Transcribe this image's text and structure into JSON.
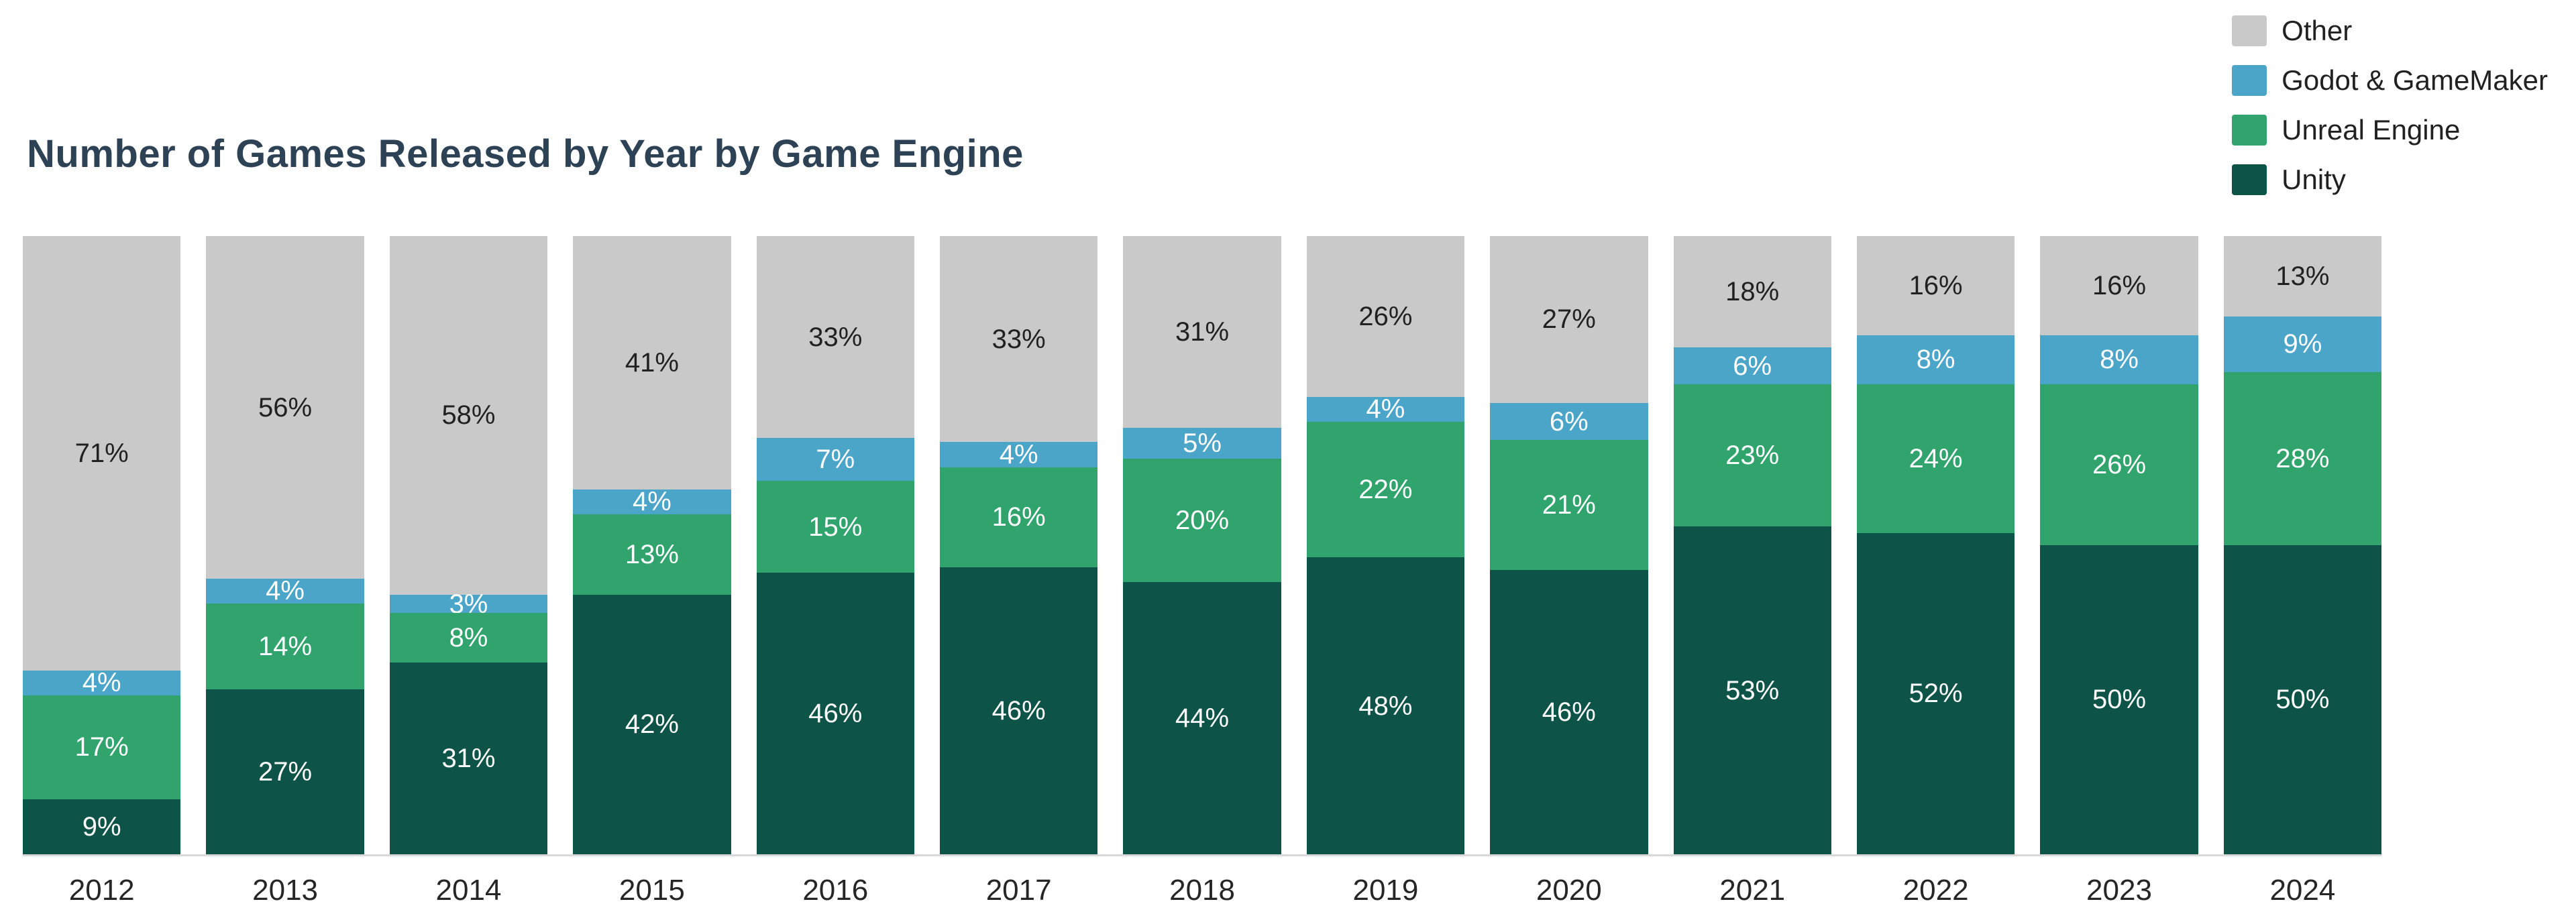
{
  "title": "Number of Games Released by Year by Game Engine",
  "legend": [
    {
      "label": "Other",
      "color": "#c9c9c9"
    },
    {
      "label": "Godot & GameMaker",
      "color": "#4aa5c9"
    },
    {
      "label": "Unreal Engine",
      "color": "#31a46d"
    },
    {
      "label": "Unity",
      "color": "#0e5348"
    }
  ],
  "chart_data": {
    "type": "bar",
    "stacked": true,
    "title": "Number of Games Released by Year by Game Engine",
    "xlabel": "",
    "ylabel": "",
    "ylim": [
      0,
      100
    ],
    "value_suffix": "%",
    "legend_position": "top-right",
    "grid": false,
    "categories": [
      "2012",
      "2013",
      "2014",
      "2015",
      "2016",
      "2017",
      "2018",
      "2019",
      "2020",
      "2021",
      "2022",
      "2023",
      "2024"
    ],
    "series": [
      {
        "name": "Unity",
        "color": "#0e5348",
        "label_color": "#ffffff",
        "values": [
          9,
          27,
          31,
          42,
          46,
          46,
          44,
          48,
          46,
          53,
          52,
          50,
          50
        ]
      },
      {
        "name": "Unreal Engine",
        "color": "#31a46d",
        "label_color": "#ffffff",
        "values": [
          17,
          14,
          8,
          13,
          15,
          16,
          20,
          22,
          21,
          23,
          24,
          26,
          28
        ]
      },
      {
        "name": "Godot & GameMaker",
        "color": "#4aa5c9",
        "label_color": "#ffffff",
        "values": [
          4,
          4,
          3,
          4,
          7,
          4,
          5,
          4,
          6,
          6,
          8,
          8,
          9
        ]
      },
      {
        "name": "Other",
        "color": "#c9c9c9",
        "label_color": "#212121",
        "values": [
          71,
          56,
          58,
          41,
          33,
          33,
          31,
          26,
          27,
          18,
          16,
          16,
          13
        ]
      }
    ]
  }
}
